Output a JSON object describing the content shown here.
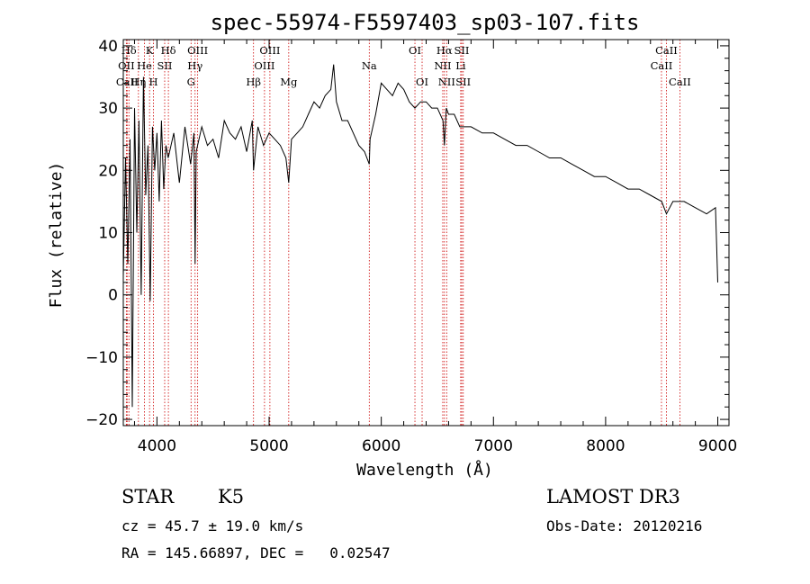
{
  "chart_data": {
    "type": "line",
    "title": "spec-55974-F5597403_sp03-107.fits",
    "xlabel": "Wavelength (Å)",
    "ylabel": "Flux (relative)",
    "xlim": [
      3700,
      9100
    ],
    "ylim": [
      -21,
      41
    ],
    "xticks": [
      4000,
      5000,
      6000,
      7000,
      8000,
      9000
    ],
    "yticks": [
      -20,
      -10,
      0,
      10,
      20,
      30,
      40
    ],
    "grid": false,
    "series": [
      {
        "x": [
          3700,
          3720,
          3740,
          3760,
          3780,
          3800,
          3820,
          3840,
          3860,
          3880,
          3900,
          3920,
          3940,
          3960,
          3980,
          4000,
          4020,
          4040,
          4060,
          4080,
          4100,
          4150,
          4200,
          4250,
          4300,
          4330,
          4340,
          4350,
          4400,
          4450,
          4500,
          4550,
          4600,
          4650,
          4700,
          4750,
          4800,
          4850,
          4861,
          4900,
          4950,
          5000,
          5050,
          5100,
          5150,
          5175,
          5200,
          5250,
          5300,
          5350,
          5400,
          5450,
          5500,
          5550,
          5575,
          5600,
          5650,
          5700,
          5750,
          5800,
          5850,
          5893,
          5900,
          5950,
          6000,
          6050,
          6100,
          6150,
          6200,
          6250,
          6300,
          6350,
          6400,
          6450,
          6500,
          6550,
          6563,
          6580,
          6600,
          6650,
          6700,
          6750,
          6800,
          6900,
          7000,
          7100,
          7200,
          7300,
          7400,
          7500,
          7600,
          7700,
          7800,
          7900,
          8000,
          8100,
          8200,
          8300,
          8400,
          8500,
          8542,
          8600,
          8700,
          8800,
          8900,
          8980,
          9000
        ],
        "y": [
          3,
          22,
          5,
          25,
          -18,
          30,
          10,
          28,
          0,
          35,
          16,
          24,
          -1,
          27,
          20,
          26,
          15,
          28,
          17,
          24,
          22,
          26,
          18,
          27,
          21,
          26,
          5,
          23,
          27,
          24,
          25,
          22,
          28,
          26,
          25,
          27,
          23,
          28,
          20,
          27,
          24,
          26,
          25,
          24,
          22,
          18,
          25,
          26,
          27,
          29,
          31,
          30,
          32,
          33,
          37,
          31,
          28,
          28,
          26,
          24,
          23,
          21,
          25,
          29,
          34,
          33,
          32,
          34,
          33,
          31,
          30,
          31,
          31,
          30,
          30,
          28,
          24,
          30,
          29,
          29,
          27,
          27,
          27,
          26,
          26,
          25,
          24,
          24,
          23,
          22,
          22,
          21,
          20,
          19,
          19,
          18,
          17,
          17,
          16,
          15,
          13,
          15,
          15,
          14,
          13,
          14,
          2
        ]
      }
    ],
    "line_markers": [
      {
        "label": "Hδ",
        "x": 3750,
        "row": 1
      },
      {
        "label": "OII",
        "x": 3727,
        "row": 2
      },
      {
        "label": "CaII",
        "x": 3734,
        "row": 3
      },
      {
        "label": "K",
        "x": 3934,
        "row": 1
      },
      {
        "label": "He",
        "x": 3889,
        "row": 2
      },
      {
        "label": "Hη",
        "x": 3835,
        "row": 3
      },
      {
        "label": "SII",
        "x": 4069,
        "row": 2
      },
      {
        "label": "H",
        "x": 3969,
        "row": 3
      },
      {
        "label": "Hδ",
        "x": 4102,
        "row": 1
      },
      {
        "label": "OIII",
        "x": 4363,
        "row": 1
      },
      {
        "label": "Hγ",
        "x": 4340,
        "row": 2
      },
      {
        "label": "G",
        "x": 4304,
        "row": 3
      },
      {
        "label": "Hβ",
        "x": 4861,
        "row": 3
      },
      {
        "label": "OIII",
        "x": 5007,
        "row": 1
      },
      {
        "label": "OIII",
        "x": 4959,
        "row": 2
      },
      {
        "label": "Mg",
        "x": 5175,
        "row": 3
      },
      {
        "label": "Na",
        "x": 5893,
        "row": 2
      },
      {
        "label": "OI",
        "x": 6300,
        "row": 1
      },
      {
        "label": "OI",
        "x": 6364,
        "row": 3
      },
      {
        "label": "Hα",
        "x": 6563,
        "row": 1
      },
      {
        "label": "NII",
        "x": 6548,
        "row": 2
      },
      {
        "label": "NII",
        "x": 6583,
        "row": 3
      },
      {
        "label": "SII",
        "x": 6717,
        "row": 1
      },
      {
        "label": "Li",
        "x": 6708,
        "row": 2
      },
      {
        "label": "SII",
        "x": 6731,
        "row": 3
      },
      {
        "label": "CaII",
        "x": 8542,
        "row": 1
      },
      {
        "label": "CaII",
        "x": 8498,
        "row": 2
      },
      {
        "label": "CaII",
        "x": 8662,
        "row": 3
      }
    ]
  },
  "info": {
    "object_class": "STAR",
    "subclass": "K5",
    "survey": "LAMOST DR3",
    "cz": "cz = 45.7 ± 19.0 km/s",
    "obs_date": "Obs-Date: 20120216",
    "coords": "RA = 145.66897, DEC =   0.02547"
  },
  "colors": {
    "axis": "#000000",
    "spectrum": "#000000",
    "line_marker": "#cc0000"
  }
}
